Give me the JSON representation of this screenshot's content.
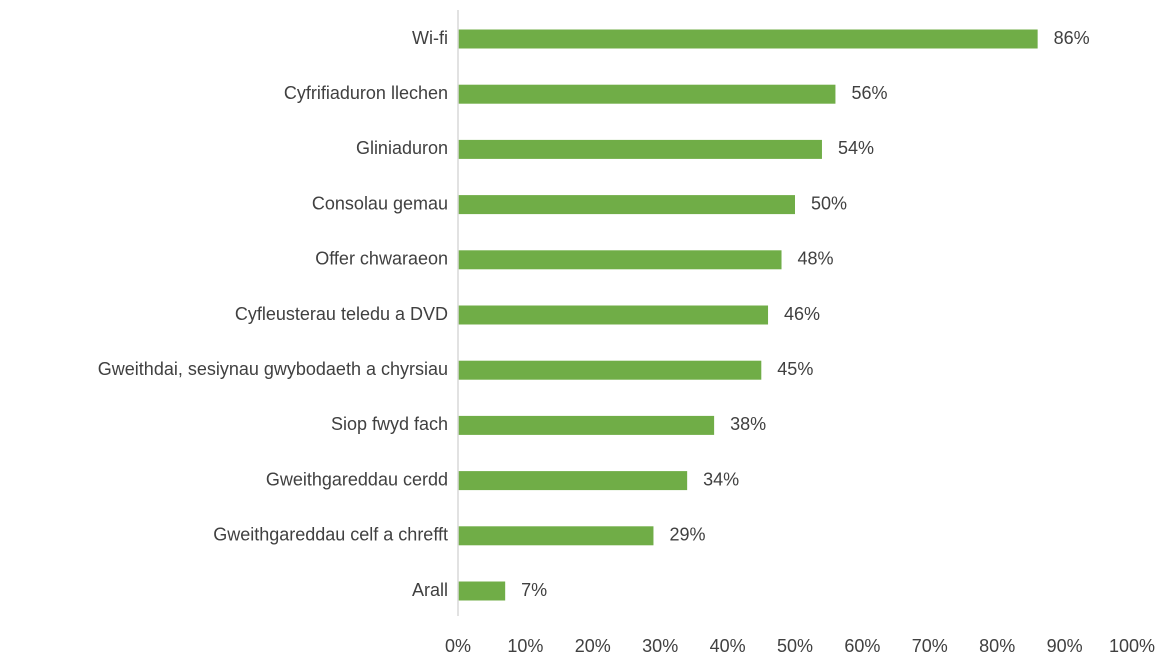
{
  "chart_data": {
    "type": "bar",
    "orientation": "horizontal",
    "title": "",
    "xlabel": "",
    "ylabel": "",
    "categories": [
      "Wi-fi",
      "Cyfrifiaduron llechen",
      "Gliniaduron",
      "Consolau gemau",
      "Offer chwaraeon",
      "Cyfleusterau teledu a DVD",
      "Gweithdai, sesiynau gwybodaeth a chyrsiau",
      "Siop fwyd fach",
      "Gweithgareddau cerdd",
      "Gweithgareddau celf a chrefft",
      "Arall"
    ],
    "values": [
      86,
      56,
      54,
      50,
      48,
      46,
      45,
      38,
      34,
      29,
      7
    ],
    "value_labels": [
      "86%",
      "56%",
      "54%",
      "50%",
      "48%",
      "46%",
      "45%",
      "38%",
      "34%",
      "29%",
      "7%"
    ],
    "xlim": [
      0,
      100
    ],
    "x_ticks": [
      "0%",
      "10%",
      "20%",
      "30%",
      "40%",
      "50%",
      "60%",
      "70%",
      "80%",
      "90%",
      "100%"
    ],
    "grid": false,
    "legend": "none",
    "bar_color": "#70ad47",
    "axis_color": "#d9d9d9",
    "text_color": "#404040"
  }
}
